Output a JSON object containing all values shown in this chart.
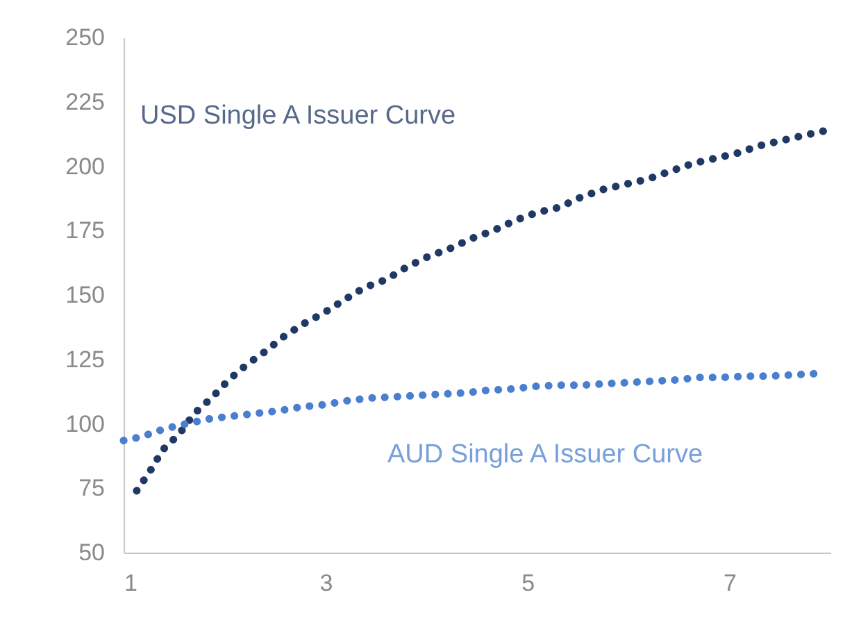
{
  "chart_data": {
    "type": "line",
    "xlim": [
      1,
      8
    ],
    "xticks": [
      1,
      3,
      5,
      7
    ],
    "ylim": [
      50,
      250
    ],
    "yticks": [
      50,
      75,
      100,
      125,
      150,
      175,
      200,
      225,
      250
    ],
    "grid": false,
    "legend": false,
    "line_style": "dotted",
    "marker": "none",
    "series": [
      {
        "name": "USD Single A Issuer Curve",
        "color": "#1f3864",
        "x": [
          1.13,
          1.26,
          1.39,
          1.55,
          1.7,
          1.87,
          2.04,
          2.22,
          2.4,
          2.59,
          2.79,
          2.98,
          3.18,
          3.39,
          3.6,
          3.81,
          4.02,
          4.23,
          4.45,
          4.66,
          4.88,
          5.09,
          5.31,
          5.53,
          5.75,
          5.97,
          6.19,
          6.41,
          6.63,
          6.85,
          7.07,
          7.3,
          7.52,
          7.74,
          7.97
        ],
        "values": [
          74,
          81.5,
          90,
          96,
          104,
          110,
          117,
          123,
          128,
          134,
          139,
          143,
          148,
          153,
          156,
          161,
          165,
          168,
          172,
          175,
          179,
          182,
          184,
          188,
          191,
          193,
          195,
          198,
          201,
          203,
          205,
          208,
          210,
          212,
          214
        ]
      },
      {
        "name": "AUD Single A Issuer Curve",
        "color": "#4a7fd0",
        "x": [
          1,
          1.18,
          1.4,
          1.62,
          1.86,
          2.08,
          2.3,
          2.53,
          2.75,
          3,
          3.22,
          3.44,
          3.69,
          3.91,
          4.13,
          4.38,
          4.6,
          4.83,
          5.07,
          5.29,
          5.54,
          5.75,
          5.99,
          6.22,
          6.46,
          6.69,
          6.92,
          7.16,
          7.39,
          7.63,
          7.86
        ],
        "values": [
          93.5,
          95,
          98,
          100,
          102,
          103,
          104,
          105,
          106.5,
          107.5,
          109,
          110,
          110.5,
          111,
          111.5,
          112,
          113,
          113.5,
          114.5,
          115,
          115,
          115.5,
          116,
          116.5,
          117,
          118,
          118,
          118.5,
          118.5,
          119,
          119.5
        ]
      }
    ]
  }
}
